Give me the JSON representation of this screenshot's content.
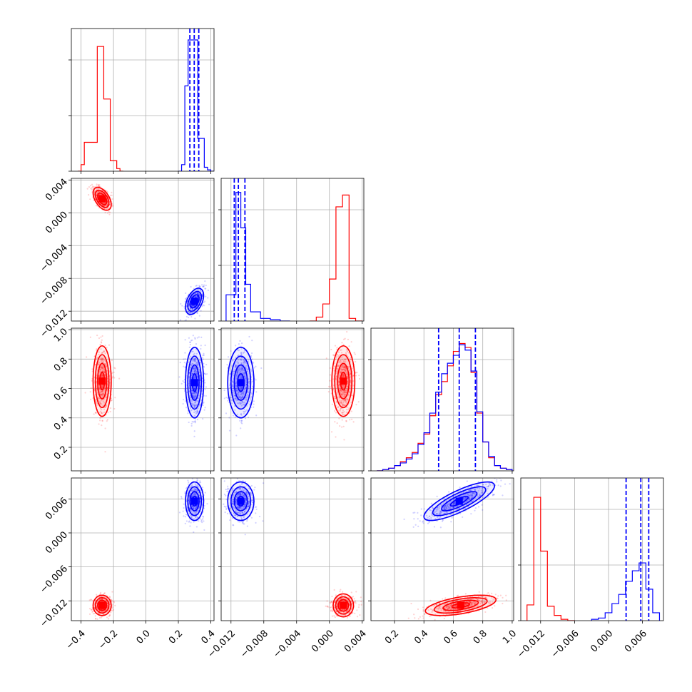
{
  "chart_data": {
    "type": "corner",
    "title": "",
    "parameters": [
      {
        "index": 0,
        "range": [
          -0.46,
          0.42
        ],
        "ticks": [
          -0.4,
          -0.2,
          0.0,
          0.2,
          0.4
        ],
        "tick_labels": [
          "−0.4",
          "−0.2",
          "0.0",
          "0.2",
          "0.4"
        ]
      },
      {
        "index": 1,
        "range": [
          -0.0132,
          0.0042
        ],
        "ticks": [
          -0.012,
          -0.008,
          -0.004,
          0.0,
          0.004
        ],
        "tick_labels": [
          "−0.012",
          "−0.008",
          "−0.004",
          "0.000",
          "0.004"
        ]
      },
      {
        "index": 2,
        "range": [
          0.04,
          1.01
        ],
        "ticks": [
          0.2,
          0.4,
          0.6,
          0.8,
          1.0
        ],
        "tick_labels": [
          "0.2",
          "0.4",
          "0.6",
          "0.8",
          "1.0"
        ]
      },
      {
        "index": 3,
        "range": [
          -0.0155,
          0.0097
        ],
        "ticks": [
          -0.012,
          -0.006,
          0.0,
          0.006
        ],
        "tick_labels": [
          "−0.012",
          "−0.006",
          "0.000",
          "0.006"
        ]
      }
    ],
    "diagonal_ticks": [
      "",
      "",
      ""
    ],
    "series": [
      {
        "color": "#ff0000",
        "means": [
          -0.27,
          0.0017,
          0.65,
          -0.0128
        ],
        "sigmas": [
          0.028,
          0.0007,
          0.12,
          0.0009
        ],
        "correlations": {
          "0-1": -0.5,
          "0-2": 0.0,
          "0-3": 0.0,
          "1-2": 0.0,
          "1-3": 0.0,
          "2-3": 0.55
        },
        "histograms": [
          {
            "edges": [
              -0.42,
              -0.4,
              -0.38,
              -0.36,
              -0.34,
              -0.32,
              -0.3,
              -0.28,
              -0.26,
              -0.24,
              -0.22,
              -0.2,
              -0.18,
              -0.16,
              -0.14
            ],
            "counts": [
              0,
              0.05,
              0.22,
              0.22,
              0.22,
              0.22,
              0.95,
              0.95,
              0.55,
              0.55,
              0.08,
              0.08,
              0.02,
              0
            ]
          },
          {
            "edges": [
              -0.0024,
              -0.0016,
              -0.0008,
              0.0,
              0.0008,
              0.0016,
              0.0024,
              0.0032,
              0.004
            ],
            "counts": [
              0,
              0.03,
              0.13,
              0.32,
              0.87,
              0.96,
              0.02,
              0
            ]
          },
          {
            "edges": [
              0.08,
              0.12,
              0.16,
              0.2,
              0.24,
              0.28,
              0.32,
              0.36,
              0.4,
              0.44,
              0.48,
              0.52,
              0.56,
              0.6,
              0.64,
              0.68,
              0.72,
              0.76,
              0.8,
              0.84,
              0.88,
              0.92,
              0.96,
              1.0
            ],
            "counts": [
              0,
              0.01,
              0.02,
              0.04,
              0.07,
              0.1,
              0.14,
              0.21,
              0.28,
              0.42,
              0.58,
              0.68,
              0.8,
              0.91,
              0.97,
              0.94,
              0.75,
              0.44,
              0.22,
              0.1,
              0.04,
              0.02,
              0.01
            ]
          },
          {
            "edges": [
              -0.0144,
              -0.0132,
              -0.012,
              -0.0108,
              -0.0096,
              -0.0084,
              -0.0072,
              -0.006
            ],
            "counts": [
              0.12,
              0.94,
              0.53,
              0.11,
              0.04,
              0.01,
              0
            ]
          }
        ]
      },
      {
        "color": "#0000ff",
        "means": [
          0.3,
          -0.0108,
          0.64,
          0.0056
        ],
        "sigmas": [
          0.028,
          0.0008,
          0.12,
          0.0017
        ],
        "correlations": {
          "0-1": 0.45,
          "0-2": 0.0,
          "0-3": 0.0,
          "1-2": 0.0,
          "1-3": 0.0,
          "2-3": 0.8
        },
        "quantiles": [
          [
            0.271,
            0.298,
            0.326
          ],
          [
            -0.0116,
            -0.0111,
            -0.0103
          ],
          [
            0.5,
            0.64,
            0.75
          ],
          [
            0.0031,
            0.0057,
            0.0071
          ]
        ],
        "histograms": [
          {
            "edges": [
              0.2,
              0.22,
              0.24,
              0.26,
              0.28,
              0.3,
              0.32,
              0.34,
              0.36,
              0.38,
              0.4,
              0.42
            ],
            "counts": [
              0,
              0.05,
              0.65,
              1.0,
              1.0,
              1.0,
              0.25,
              0.25,
              0.03,
              0.01,
              0
            ]
          },
          {
            "edges": [
              -0.0126,
              -0.012,
              -0.0114,
              -0.0108,
              -0.0102,
              -0.0096,
              -0.009,
              -0.0084,
              -0.0078,
              -0.0072,
              -0.0066,
              -0.006,
              -0.0054,
              -0.0048
            ],
            "counts": [
              0.2,
              0.2,
              0.98,
              0.71,
              0.28,
              0.07,
              0.07,
              0.02,
              0.02,
              0.01,
              0.01,
              0,
              0
            ]
          },
          {
            "edges": [
              0.08,
              0.12,
              0.16,
              0.2,
              0.24,
              0.28,
              0.32,
              0.36,
              0.4,
              0.44,
              0.48,
              0.52,
              0.56,
              0.6,
              0.64,
              0.68,
              0.72,
              0.76,
              0.8,
              0.84,
              0.88,
              0.92,
              0.96,
              1.0
            ],
            "counts": [
              0,
              0.01,
              0.02,
              0.04,
              0.06,
              0.09,
              0.13,
              0.2,
              0.29,
              0.44,
              0.6,
              0.74,
              0.82,
              0.88,
              0.96,
              0.92,
              0.76,
              0.45,
              0.22,
              0.11,
              0.04,
              0.02,
              0.01
            ]
          },
          {
            "edges": [
              -0.003,
              -0.0018,
              -0.0006,
              0.0006,
              0.0018,
              0.003,
              0.0042,
              0.0054,
              0.0066,
              0.0078,
              0.009
            ],
            "counts": [
              0.01,
              0.02,
              0.06,
              0.13,
              0.2,
              0.3,
              0.38,
              0.44,
              0.24,
              0.06
            ]
          }
        ]
      }
    ]
  }
}
